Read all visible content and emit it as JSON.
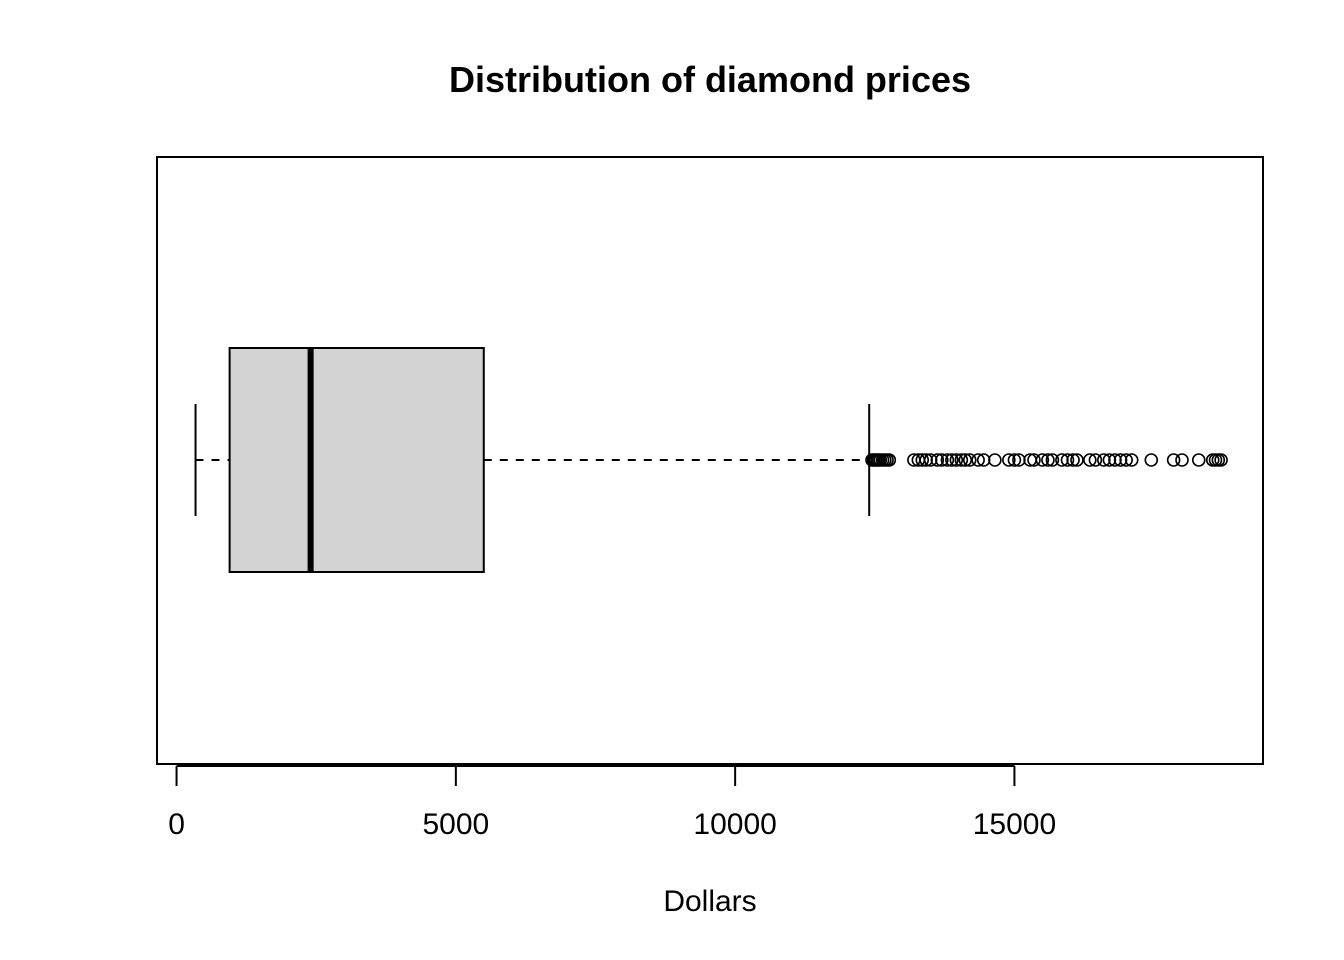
{
  "chart_data": {
    "type": "boxplot",
    "title": "Distribution of diamond prices",
    "xlabel": "Dollars",
    "ylabel": "",
    "orientation": "horizontal",
    "xlim": [
      -350,
      19450
    ],
    "x_ticks": [
      0,
      5000,
      10000,
      15000
    ],
    "x_tick_labels": [
      "0",
      "5000",
      "10000",
      "15000"
    ],
    "box": {
      "whisker_low": 340,
      "q1": 950,
      "median": 2400,
      "q3": 5500,
      "whisker_high": 12400
    },
    "outliers": [
      12450,
      12480,
      12510,
      12540,
      12570,
      12600,
      12640,
      12680,
      12720,
      12760,
      13200,
      13280,
      13350,
      13420,
      13500,
      13620,
      13700,
      13800,
      13880,
      13960,
      14050,
      14120,
      14200,
      14350,
      14450,
      14650,
      14900,
      15000,
      15080,
      15280,
      15350,
      15500,
      15600,
      15680,
      15850,
      15950,
      16050,
      16120,
      16350,
      16450,
      16600,
      16700,
      16800,
      16900,
      17000,
      17100,
      17450,
      17850,
      18000,
      18300,
      18550,
      18600,
      18650,
      18700
    ],
    "colors": {
      "box_fill": "#d3d3d3",
      "stroke": "#000000",
      "background": "#ffffff"
    },
    "grid": false,
    "legend": "none"
  }
}
